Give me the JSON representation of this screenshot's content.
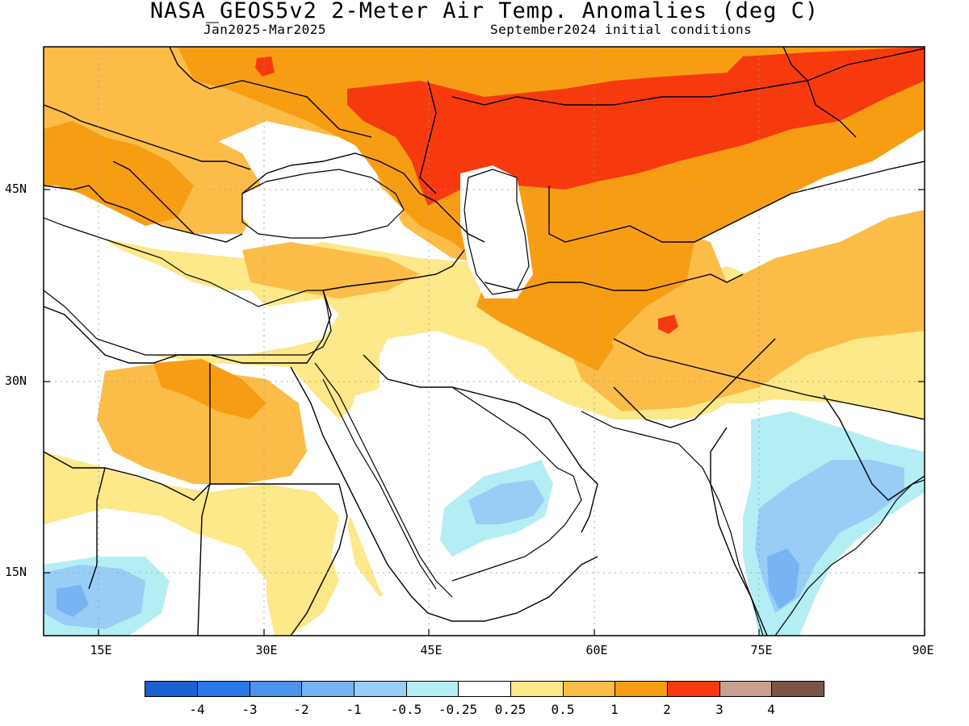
{
  "header": {
    "title": "NASA_GEOS5v2 2-Meter Air Temp. Anomalies (deg C)",
    "period": "Jan2025-Mar2025",
    "init": "September2024 initial conditions"
  },
  "axes": {
    "y_labels": [
      "45N",
      "30N",
      "15N"
    ],
    "x_labels": [
      "15E",
      "30E",
      "45E",
      "60E",
      "75E",
      "90E"
    ]
  },
  "legend": {
    "colors": [
      "#1b5fd0",
      "#2a78e8",
      "#4c93ee",
      "#78b3f3",
      "#98cdf6",
      "#b4eef4",
      "#ffffff",
      "#fde88a",
      "#fcbc48",
      "#f79d14",
      "#f73a0e",
      "#c8a090",
      "#7a5546"
    ],
    "labels": [
      "-4",
      "-3",
      "-2",
      "-1",
      "-0.5",
      "-0.25",
      "0.25",
      "0.5",
      "1",
      "2",
      "3",
      "4"
    ]
  }
}
